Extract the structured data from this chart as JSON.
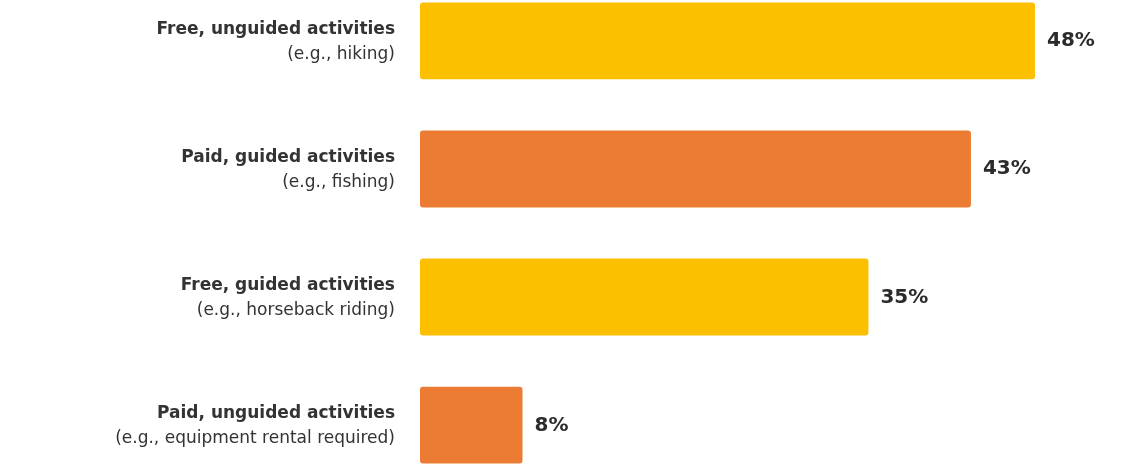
{
  "chart_data": {
    "type": "bar",
    "orientation": "horizontal",
    "categories": [
      "Free, unguided activities\n(e.g., hiking)",
      "Paid, guided activities\n(e.g., fishing)",
      "Free, guided activities\n(e.g., horseback riding)",
      "Paid, unguided activities\n(e.g., equipment rental required)"
    ],
    "values": [
      48,
      43,
      35,
      8
    ],
    "colors": [
      "#fcc000",
      "#ec7c33",
      "#fcc000",
      "#ec7c33"
    ],
    "value_labels": [
      "48%",
      "43%",
      "35%",
      "8%"
    ]
  }
}
